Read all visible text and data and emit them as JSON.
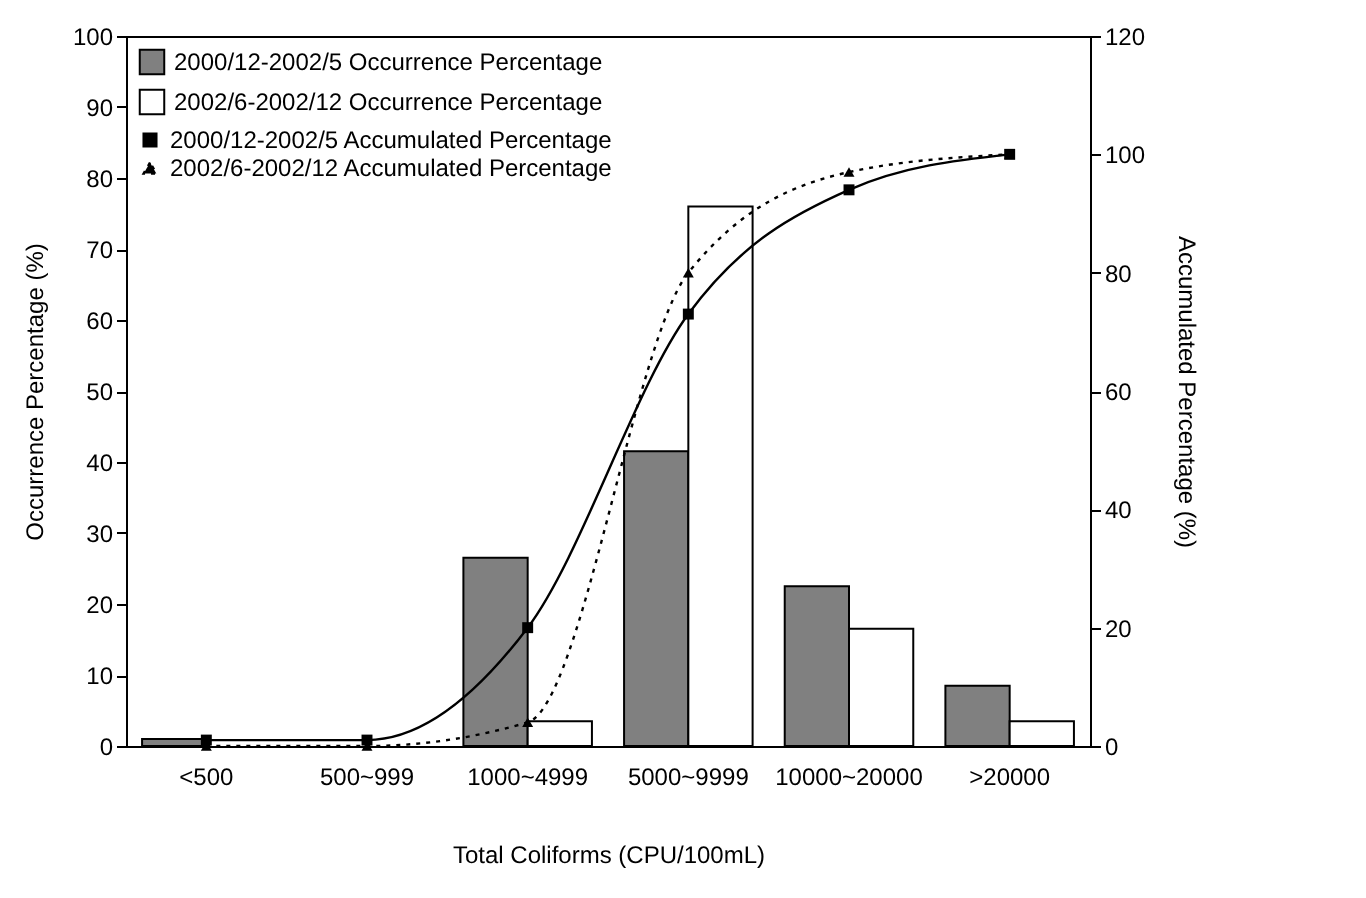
{
  "chart_data": {
    "type": "bar",
    "xlabel": "Total Coliforms (CPU/100mL)",
    "ylabel": "Occurrence Percentage (%)",
    "y2label": "Accumulated Percentage (%)",
    "categories": [
      "<500",
      "500~999",
      "1000~4999",
      "5000~9999",
      "10000~20000",
      ">20000"
    ],
    "series": [
      {
        "name": "2000/12-2002/5 Occurrence Percentage",
        "color": "#808080",
        "values": [
          1,
          0,
          26.5,
          41.5,
          22.5,
          8.5
        ]
      },
      {
        "name": "2002/6-2002/12 Occurrence Percentage",
        "color": "#ffffff",
        "values": [
          0,
          0,
          3.5,
          76,
          16.5,
          3.5
        ]
      },
      {
        "name": "2000/12-2002/5 Accumulated Percentage",
        "type": "line",
        "axis": "y2",
        "color": "#000000",
        "marker": "square",
        "line_style": "solid",
        "values": [
          1,
          1,
          20,
          73,
          94,
          100
        ]
      },
      {
        "name": "2002/6-2002/12 Accumulated Percentage",
        "type": "line",
        "axis": "y2",
        "color": "#000000",
        "marker": "triangle",
        "line_style": "dotted",
        "values": [
          0,
          0,
          4,
          80,
          97,
          100
        ]
      }
    ],
    "ylim": [
      0,
      100
    ],
    "yticks": [
      0,
      10,
      20,
      30,
      40,
      50,
      60,
      70,
      80,
      90,
      100
    ],
    "y2lim": [
      0,
      120
    ],
    "y2ticks": [
      0,
      20,
      40,
      60,
      80,
      100,
      120
    ],
    "legend": "top left"
  }
}
